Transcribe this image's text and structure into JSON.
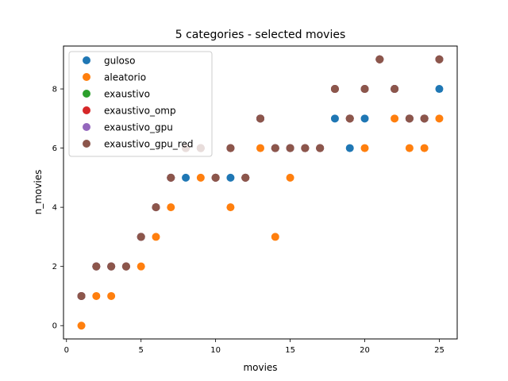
{
  "chart_data": {
    "type": "scatter",
    "title": "5 categories - selected movies",
    "xlabel": "movies",
    "ylabel": "n_movies",
    "xlim": [
      -0.2,
      26.2
    ],
    "ylim": [
      -0.45,
      9.45
    ],
    "xticks": [
      0,
      5,
      10,
      15,
      20,
      25
    ],
    "yticks": [
      0,
      2,
      4,
      6,
      8
    ],
    "grid": false,
    "legend_position": "upper-left",
    "x": [
      1,
      2,
      3,
      4,
      5,
      6,
      7,
      8,
      9,
      10,
      11,
      12,
      13,
      14,
      15,
      16,
      17,
      18,
      19,
      20,
      21,
      22,
      23,
      24,
      25
    ],
    "series": [
      {
        "name": "guloso",
        "color": "#1f77b4",
        "values": [
          1,
          2,
          2,
          2,
          3,
          4,
          5,
          5,
          6,
          5,
          5,
          5,
          7,
          6,
          6,
          6,
          6,
          7,
          6,
          7,
          9,
          8,
          7,
          7,
          8
        ]
      },
      {
        "name": "aleatorio",
        "color": "#ff7f0e",
        "values": [
          0,
          1,
          1,
          2,
          2,
          3,
          4,
          6,
          5,
          5,
          4,
          5,
          6,
          3,
          5,
          6,
          6,
          8,
          7,
          6,
          9,
          7,
          6,
          6,
          7
        ]
      },
      {
        "name": "exaustivo",
        "color": "#2ca02c",
        "values": [
          1,
          2,
          2,
          2,
          3,
          4,
          5,
          6,
          6,
          5,
          6,
          5,
          7,
          6,
          6,
          6,
          6,
          8,
          7,
          8,
          9,
          8,
          7,
          7,
          9
        ]
      },
      {
        "name": "exaustivo_omp",
        "color": "#d62728",
        "values": [
          1,
          2,
          2,
          2,
          3,
          4,
          5,
          6,
          6,
          5,
          6,
          5,
          7,
          6,
          6,
          6,
          6,
          8,
          7,
          8,
          9,
          8,
          7,
          7,
          9
        ]
      },
      {
        "name": "exaustivo_gpu",
        "color": "#9467bd",
        "values": [
          1,
          2,
          2,
          2,
          3,
          4,
          5,
          6,
          6,
          5,
          6,
          5,
          7,
          6,
          6,
          6,
          6,
          8,
          7,
          8,
          9,
          8,
          7,
          7,
          9
        ]
      },
      {
        "name": "exaustivo_gpu_red",
        "color": "#8c564b",
        "values": [
          1,
          2,
          2,
          2,
          3,
          4,
          5,
          6,
          6,
          5,
          6,
          5,
          7,
          6,
          6,
          6,
          6,
          8,
          7,
          8,
          9,
          8,
          7,
          7,
          9
        ]
      }
    ]
  }
}
